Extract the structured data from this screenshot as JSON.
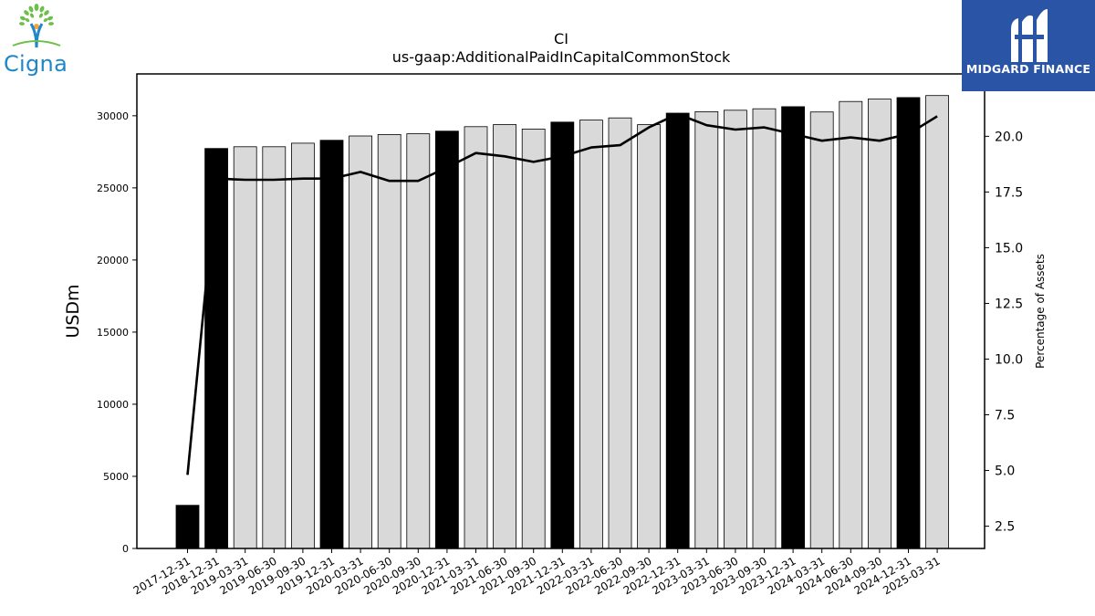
{
  "chart_data": {
    "type": "bar",
    "title": "CI",
    "subtitle": "us-gaap:AdditionalPaidInCapitalCommonStock",
    "ylabel": "USDm",
    "y2label": "Percentage of Assets",
    "ylim": [
      0,
      32900
    ],
    "y2lim": [
      1.5,
      22.8
    ],
    "yticks": [
      0,
      5000,
      10000,
      15000,
      20000,
      25000,
      30000
    ],
    "y2ticks": [
      "2.5",
      "5.0",
      "7.5",
      "10.0",
      "12.5",
      "15.0",
      "17.5",
      "20.0"
    ],
    "categories": [
      "2017-12-31",
      "2018-12-31",
      "2019-03-31",
      "2019-06-30",
      "2019-09-30",
      "2019-12-31",
      "2020-03-31",
      "2020-06-30",
      "2020-09-30",
      "2020-12-31",
      "2021-03-31",
      "2021-06-30",
      "2021-09-30",
      "2021-12-31",
      "2022-03-31",
      "2022-06-30",
      "2022-09-30",
      "2022-12-31",
      "2023-03-31",
      "2023-06-30",
      "2023-09-30",
      "2023-12-31",
      "2024-03-31",
      "2024-06-30",
      "2024-09-30",
      "2024-12-31",
      "2025-03-31"
    ],
    "series": [
      {
        "kind": "bar",
        "values": [
          2990,
          27730,
          27850,
          27850,
          28100,
          28300,
          28600,
          28700,
          28750,
          28930,
          29240,
          29390,
          29080,
          29560,
          29700,
          29850,
          29380,
          30180,
          30280,
          30380,
          30480,
          30630,
          30260,
          30990,
          31160,
          31260,
          31400
        ],
        "annual": [
          true,
          true,
          false,
          false,
          false,
          true,
          false,
          false,
          false,
          true,
          false,
          false,
          false,
          true,
          false,
          false,
          false,
          true,
          false,
          false,
          false,
          true,
          false,
          false,
          false,
          true,
          false
        ]
      },
      {
        "kind": "line",
        "axis": "right",
        "values": [
          4.8,
          18.1,
          18.05,
          18.05,
          18.1,
          18.1,
          18.4,
          18.0,
          18.0,
          18.6,
          19.25,
          19.1,
          18.85,
          19.1,
          19.5,
          19.6,
          20.4,
          21.0,
          20.5,
          20.3,
          20.4,
          20.1,
          19.8,
          19.95,
          19.8,
          20.1,
          20.9
        ]
      }
    ],
    "colors": {
      "annual_bar": "#000000",
      "quarter_bar": "#d9d9d9",
      "bar_edge": "#000000",
      "line": "#000000"
    },
    "grid": false
  },
  "logos": {
    "left": {
      "icon": "tree-person-icon",
      "text": "Cigna",
      "color": "#1f86c8"
    },
    "right": {
      "icon": "midgard-m-icon",
      "text": "MIDGARD FINANCE",
      "color": "#2a55a7"
    }
  }
}
